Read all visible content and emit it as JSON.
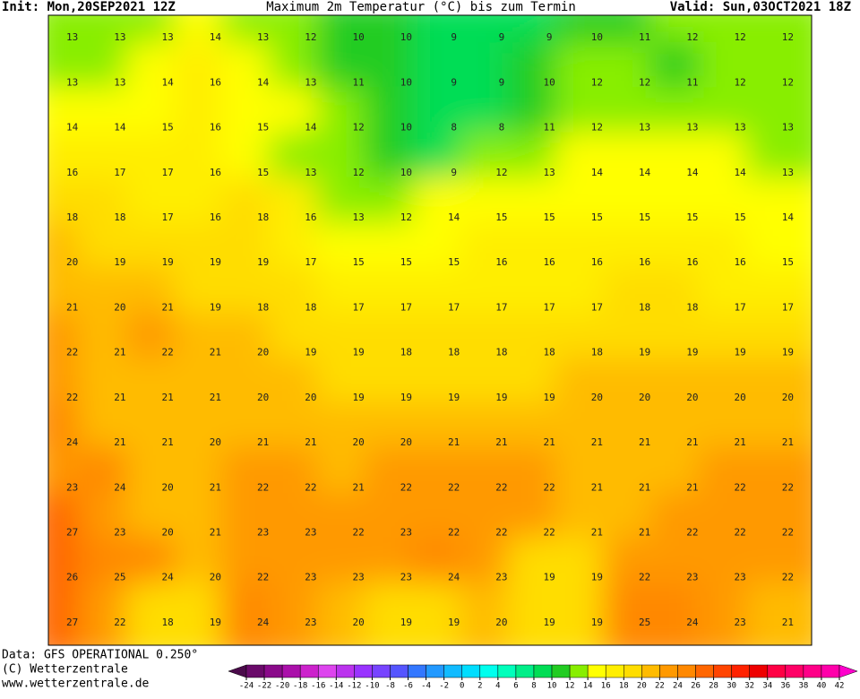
{
  "header": {
    "init": "Init: Mon,20SEP2021 12Z",
    "title": "Maximum 2m Temperatur (°C) bis zum Termin",
    "valid": "Valid: Sun,03OCT2021 18Z"
  },
  "footer": {
    "data": "Data: GFS OPERATIONAL 0.250°",
    "copyright": "(C) Wetterzentrale",
    "url": "www.wetterzentrale.de"
  },
  "map": {
    "rows": [
      [
        13,
        13,
        13,
        14,
        13,
        12,
        10,
        10,
        9,
        9,
        9,
        10,
        11,
        12,
        12,
        12
      ],
      [
        13,
        13,
        14,
        16,
        14,
        13,
        11,
        10,
        9,
        9,
        10,
        12,
        12,
        11,
        12,
        12
      ],
      [
        14,
        14,
        15,
        16,
        15,
        14,
        12,
        10,
        8,
        8,
        11,
        12,
        13,
        13,
        13,
        13
      ],
      [
        16,
        17,
        17,
        16,
        15,
        13,
        12,
        10,
        9,
        12,
        13,
        14,
        14,
        14,
        14,
        13
      ],
      [
        18,
        18,
        17,
        16,
        18,
        16,
        13,
        12,
        14,
        15,
        15,
        15,
        15,
        15,
        15,
        14
      ],
      [
        20,
        19,
        19,
        19,
        19,
        17,
        15,
        15,
        15,
        16,
        16,
        16,
        16,
        16,
        16,
        15
      ],
      [
        21,
        20,
        21,
        19,
        18,
        18,
        17,
        17,
        17,
        17,
        17,
        17,
        18,
        18,
        17,
        17
      ],
      [
        22,
        21,
        22,
        21,
        20,
        19,
        19,
        18,
        18,
        18,
        18,
        18,
        19,
        19,
        19,
        19
      ],
      [
        22,
        21,
        21,
        21,
        20,
        20,
        19,
        19,
        19,
        19,
        19,
        20,
        20,
        20,
        20,
        20
      ],
      [
        24,
        21,
        21,
        20,
        21,
        21,
        20,
        20,
        21,
        21,
        21,
        21,
        21,
        21,
        21,
        21
      ],
      [
        23,
        24,
        20,
        21,
        22,
        22,
        21,
        22,
        22,
        22,
        22,
        21,
        21,
        21,
        22,
        22
      ],
      [
        27,
        23,
        20,
        21,
        23,
        23,
        22,
        23,
        22,
        22,
        22,
        21,
        21,
        22,
        22,
        22
      ],
      [
        26,
        25,
        24,
        20,
        22,
        23,
        23,
        23,
        24,
        23,
        19,
        19,
        22,
        23,
        23,
        22
      ],
      [
        27,
        22,
        18,
        19,
        24,
        23,
        20,
        19,
        19,
        20,
        19,
        19,
        25,
        24,
        23,
        21
      ]
    ]
  },
  "legend": {
    "ticks": [
      -24,
      -22,
      -20,
      -18,
      -16,
      -14,
      -12,
      -10,
      -8,
      -6,
      -4,
      -2,
      0,
      2,
      4,
      6,
      8,
      10,
      12,
      14,
      16,
      18,
      20,
      22,
      24,
      26,
      28,
      30,
      32,
      34,
      36,
      38,
      40,
      42
    ],
    "colors": [
      "#4a0a4a",
      "#6a0a6a",
      "#8a0a8a",
      "#aa10aa",
      "#cc22cc",
      "#dd44ee",
      "#bb33ee",
      "#9933ff",
      "#7744ff",
      "#5555ff",
      "#3377ff",
      "#2299ff",
      "#11bbff",
      "#00ddff",
      "#00ffee",
      "#00ffbb",
      "#00ee88",
      "#00dd55",
      "#22cc22",
      "#88ee00",
      "#ffff00",
      "#ffee00",
      "#ffdd00",
      "#ffbb00",
      "#ff9900",
      "#ff8800",
      "#ff6600",
      "#ff4400",
      "#ff2200",
      "#ee0000",
      "#ff0044",
      "#ff0066",
      "#ff0088",
      "#ff00aa",
      "#ff00cc"
    ]
  }
}
